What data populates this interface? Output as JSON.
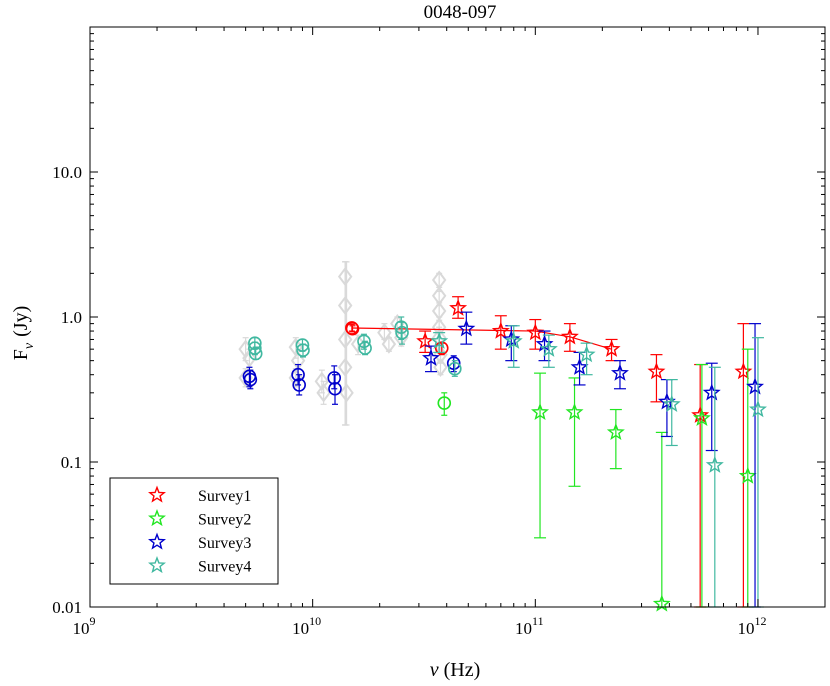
{
  "chart_data": {
    "type": "scatter",
    "title": "0048-097",
    "xlabel_symbol": "ν",
    "xlabel_unit": "(Hz)",
    "ylabel_main": "F",
    "ylabel_sub": "ν",
    "ylabel_unit": "(Jy)",
    "x_scale": "log",
    "y_scale": "log",
    "xlim": [
      1000000000.0,
      2000000000000.0
    ],
    "ylim": [
      0.01,
      100
    ],
    "x_ticks": [
      {
        "value": 1000000000.0,
        "base": "10",
        "exp": "9"
      },
      {
        "value": 10000000000.0,
        "base": "10",
        "exp": "10"
      },
      {
        "value": 100000000000.0,
        "base": "10",
        "exp": "11"
      },
      {
        "value": 1000000000000.0,
        "base": "10",
        "exp": "12"
      }
    ],
    "y_ticks": [
      {
        "value": 0.01,
        "label": "0.01"
      },
      {
        "value": 0.1,
        "label": "0.1"
      },
      {
        "value": 1,
        "label": "1.0"
      },
      {
        "value": 10,
        "label": "10.0"
      }
    ],
    "legend_position": "bottom-left",
    "colors": {
      "survey1": "#ff0000",
      "survey2": "#22e622",
      "survey3": "#0000cc",
      "survey4": "#40b8a0",
      "archival": "#d9d9d9",
      "red_circles": "#ff0000",
      "green_circles": "#22e622",
      "blue_circles": "#0000cc",
      "teal_circles": "#40b8a0"
    },
    "series": [
      {
        "name": "Survey1",
        "color_key": "survey1",
        "marker": "star",
        "connect": true,
        "points": [
          {
            "x": 32000000000.0,
            "y": 0.68,
            "lo": 0.57,
            "hi": 0.8
          },
          {
            "x": 45000000000.0,
            "y": 1.15,
            "lo": 0.98,
            "hi": 1.38
          },
          {
            "x": 70000000000.0,
            "y": 0.8,
            "lo": 0.6,
            "hi": 1.02
          },
          {
            "x": 100000000000.0,
            "y": 0.78,
            "lo": 0.6,
            "hi": 0.96
          },
          {
            "x": 143000000000.0,
            "y": 0.73,
            "lo": 0.58,
            "hi": 0.9
          },
          {
            "x": 220000000000.0,
            "y": 0.6,
            "lo": 0.5,
            "hi": 0.7
          },
          {
            "x": 350000000000.0,
            "y": 0.42,
            "lo": 0.26,
            "hi": 0.55
          },
          {
            "x": 550000000000.0,
            "y": 0.21,
            "lo": 0.01,
            "hi": 0.47
          },
          {
            "x": 860000000000.0,
            "y": 0.42,
            "lo": 0.01,
            "hi": 0.9
          }
        ],
        "line": [
          {
            "x": 15000000000.0,
            "y": 0.84
          },
          {
            "x": 100000000000.0,
            "y": 0.8
          },
          {
            "x": 143000000000.0,
            "y": 0.73
          },
          {
            "x": 220000000000.0,
            "y": 0.6
          }
        ]
      },
      {
        "name": "Survey2",
        "color_key": "survey2",
        "marker": "star",
        "points": [
          {
            "x": 105000000000.0,
            "y": 0.22,
            "lo": 0.03,
            "hi": 0.41
          },
          {
            "x": 150000000000.0,
            "y": 0.22,
            "lo": 0.068,
            "hi": 0.38
          },
          {
            "x": 230000000000.0,
            "y": 0.16,
            "lo": 0.09,
            "hi": 0.23
          },
          {
            "x": 370000000000.0,
            "y": 0.0105,
            "lo": 0.01,
            "hi": 0.16
          },
          {
            "x": 560000000000.0,
            "y": 0.2,
            "lo": 0.01,
            "hi": 0.47
          },
          {
            "x": 900000000000.0,
            "y": 0.08,
            "lo": 0.01,
            "hi": 0.6
          }
        ]
      },
      {
        "name": "Survey3",
        "color_key": "survey3",
        "marker": "star",
        "points": [
          {
            "x": 34000000000.0,
            "y": 0.52,
            "lo": 0.42,
            "hi": 0.63
          },
          {
            "x": 49000000000.0,
            "y": 0.83,
            "lo": 0.65,
            "hi": 1.08
          },
          {
            "x": 78000000000.0,
            "y": 0.7,
            "lo": 0.5,
            "hi": 0.87
          },
          {
            "x": 110000000000.0,
            "y": 0.65,
            "lo": 0.5,
            "hi": 0.8
          },
          {
            "x": 158000000000.0,
            "y": 0.45,
            "lo": 0.34,
            "hi": 0.57
          },
          {
            "x": 240000000000.0,
            "y": 0.41,
            "lo": 0.32,
            "hi": 0.5
          },
          {
            "x": 390000000000.0,
            "y": 0.26,
            "lo": 0.15,
            "hi": 0.37
          },
          {
            "x": 620000000000.0,
            "y": 0.3,
            "lo": 0.12,
            "hi": 0.48
          },
          {
            "x": 970000000000.0,
            "y": 0.33,
            "lo": 0.01,
            "hi": 0.9
          }
        ]
      },
      {
        "name": "Survey4",
        "color_key": "survey4",
        "marker": "star",
        "points": [
          {
            "x": 37000000000.0,
            "y": 0.68,
            "lo": 0.57,
            "hi": 0.78
          },
          {
            "x": 80000000000.0,
            "y": 0.68,
            "lo": 0.45,
            "hi": 0.87
          },
          {
            "x": 115000000000.0,
            "y": 0.6,
            "lo": 0.45,
            "hi": 0.75
          },
          {
            "x": 170000000000.0,
            "y": 0.55,
            "lo": 0.4,
            "hi": 0.66
          },
          {
            "x": 410000000000.0,
            "y": 0.25,
            "lo": 0.13,
            "hi": 0.37
          },
          {
            "x": 640000000000.0,
            "y": 0.095,
            "lo": 0.01,
            "hi": 0.45
          },
          {
            "x": 1000000000000.0,
            "y": 0.23,
            "lo": 0.01,
            "hi": 0.72
          }
        ]
      }
    ],
    "circle_series": [
      {
        "color_key": "red_circles",
        "points": [
          {
            "x": 15000000000.0,
            "y": 0.84,
            "lo": 0.8,
            "hi": 0.89
          },
          {
            "x": 15100000000.0,
            "y": 0.83,
            "lo": 0.79,
            "hi": 0.87
          },
          {
            "x": 38000000000.0,
            "y": 0.61,
            "lo": 0.55,
            "hi": 0.66
          }
        ]
      },
      {
        "color_key": "green_circles",
        "points": [
          {
            "x": 39000000000.0,
            "y": 0.255,
            "lo": 0.21,
            "hi": 0.3
          }
        ]
      },
      {
        "color_key": "blue_circles",
        "points": [
          {
            "x": 5200000000.0,
            "y": 0.39,
            "lo": 0.33,
            "hi": 0.45
          },
          {
            "x": 5250000000.0,
            "y": 0.37,
            "lo": 0.32,
            "hi": 0.43
          },
          {
            "x": 8600000000.0,
            "y": 0.4,
            "lo": 0.34,
            "hi": 0.47
          },
          {
            "x": 8700000000.0,
            "y": 0.34,
            "lo": 0.29,
            "hi": 0.4
          },
          {
            "x": 12500000000.0,
            "y": 0.38,
            "lo": 0.32,
            "hi": 0.46
          },
          {
            "x": 12600000000.0,
            "y": 0.32,
            "lo": 0.25,
            "hi": 0.4
          },
          {
            "x": 43000000000.0,
            "y": 0.48,
            "lo": 0.42,
            "hi": 0.54
          }
        ]
      },
      {
        "color_key": "teal_circles",
        "points": [
          {
            "x": 5500000000.0,
            "y": 0.66,
            "lo": 0.6,
            "hi": 0.72
          },
          {
            "x": 5500000000.0,
            "y": 0.61,
            "lo": 0.55,
            "hi": 0.67
          },
          {
            "x": 5550000000.0,
            "y": 0.56,
            "lo": 0.51,
            "hi": 0.62
          },
          {
            "x": 9000000000.0,
            "y": 0.64,
            "lo": 0.58,
            "hi": 0.7
          },
          {
            "x": 9050000000.0,
            "y": 0.59,
            "lo": 0.53,
            "hi": 0.65
          },
          {
            "x": 17000000000.0,
            "y": 0.68,
            "lo": 0.6,
            "hi": 0.76
          },
          {
            "x": 17200000000.0,
            "y": 0.61,
            "lo": 0.55,
            "hi": 0.68
          },
          {
            "x": 25000000000.0,
            "y": 0.85,
            "lo": 0.7,
            "hi": 1.0
          },
          {
            "x": 25200000000.0,
            "y": 0.78,
            "lo": 0.65,
            "hi": 0.92
          },
          {
            "x": 43500000000.0,
            "y": 0.44,
            "lo": 0.39,
            "hi": 0.5
          }
        ]
      }
    ],
    "archival": {
      "color_key": "archival",
      "points": [
        {
          "x": 5000000000.0,
          "y": 0.6,
          "lo": 0.5,
          "hi": 0.72
        },
        {
          "x": 5000000000.0,
          "y": 0.38,
          "lo": 0.33,
          "hi": 0.44
        },
        {
          "x": 5200000000.0,
          "y": 0.52,
          "lo": 0.45,
          "hi": 0.6
        },
        {
          "x": 8400000000.0,
          "y": 0.62,
          "lo": 0.52,
          "hi": 0.72
        },
        {
          "x": 8400000000.0,
          "y": 0.38,
          "lo": 0.33,
          "hi": 0.44
        },
        {
          "x": 8600000000.0,
          "y": 0.5,
          "lo": 0.44,
          "hi": 0.58
        },
        {
          "x": 11000000000.0,
          "y": 0.36,
          "lo": 0.3,
          "hi": 0.43
        },
        {
          "x": 11200000000.0,
          "y": 0.3,
          "lo": 0.25,
          "hi": 0.36
        },
        {
          "x": 14000000000.0,
          "y": 0.45,
          "lo": 0.18,
          "hi": 2.4
        },
        {
          "x": 14000000000.0,
          "y": 0.7,
          "lo": 0.18,
          "hi": 2.4
        },
        {
          "x": 14000000000.0,
          "y": 1.2,
          "lo": 0.18,
          "hi": 2.4
        },
        {
          "x": 14000000000.0,
          "y": 1.9,
          "lo": 0.18,
          "hi": 2.4
        },
        {
          "x": 14200000000.0,
          "y": 0.3,
          "lo": 0.18,
          "hi": 2.4
        },
        {
          "x": 16000000000.0,
          "y": 0.65,
          "lo": 0.55,
          "hi": 0.75
        },
        {
          "x": 21000000000.0,
          "y": 0.78,
          "lo": 0.7,
          "hi": 0.9
        },
        {
          "x": 22000000000.0,
          "y": 0.65,
          "lo": 0.58,
          "hi": 0.72
        },
        {
          "x": 24000000000.0,
          "y": 0.9,
          "lo": 0.8,
          "hi": 1.0
        },
        {
          "x": 25000000000.0,
          "y": 0.72,
          "lo": 0.63,
          "hi": 0.8
        },
        {
          "x": 37000000000.0,
          "y": 1.8,
          "lo": 1.5,
          "hi": 2.0
        },
        {
          "x": 37000000000.0,
          "y": 1.4,
          "lo": 1.2,
          "hi": 1.6
        },
        {
          "x": 37000000000.0,
          "y": 1.1,
          "lo": 0.95,
          "hi": 1.25
        },
        {
          "x": 37000000000.0,
          "y": 0.85,
          "lo": 0.72,
          "hi": 1.0
        },
        {
          "x": 37000000000.0,
          "y": 0.72,
          "lo": 0.6,
          "hi": 0.85
        },
        {
          "x": 37500000000.0,
          "y": 0.55,
          "lo": 0.48,
          "hi": 0.62
        },
        {
          "x": 37500000000.0,
          "y": 0.45,
          "lo": 0.4,
          "hi": 0.5
        }
      ]
    },
    "legend": [
      {
        "label": "Survey1",
        "color_key": "survey1"
      },
      {
        "label": "Survey2",
        "color_key": "survey2"
      },
      {
        "label": "Survey3",
        "color_key": "survey3"
      },
      {
        "label": "Survey4",
        "color_key": "survey4"
      }
    ]
  }
}
